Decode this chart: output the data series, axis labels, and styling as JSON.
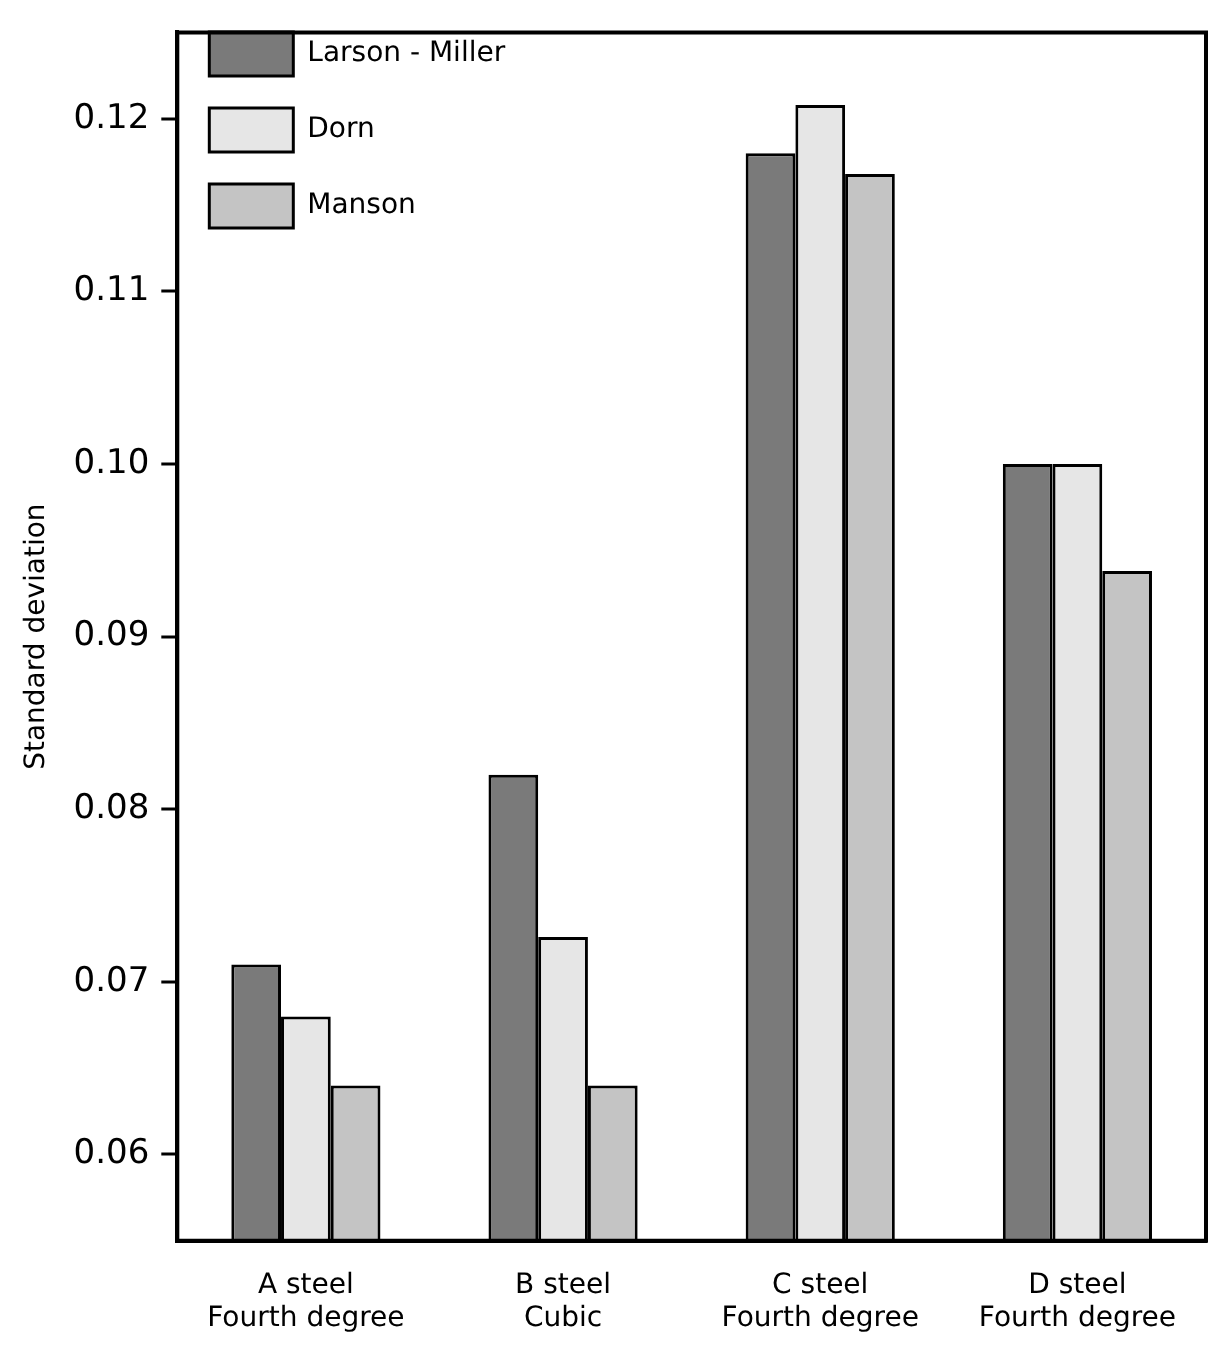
{
  "chart_data": {
    "type": "bar",
    "ylabel": "Standard deviation",
    "categories": [
      "A steel\nFourth degree",
      "B steel\nCubic",
      "C steel\nFourth degree",
      "D steel\nFourth degree"
    ],
    "series": [
      {
        "name": "Larson - Miller",
        "color": "#7a7a7a",
        "values": [
          0.071,
          0.082,
          0.118,
          0.1
        ]
      },
      {
        "name": "Dorn",
        "color": "#e6e6e6",
        "values": [
          0.068,
          0.0726,
          0.1208,
          0.1
        ]
      },
      {
        "name": "Manson",
        "color": "#c4c4c4",
        "values": [
          0.064,
          0.064,
          0.1168,
          0.0938
        ]
      }
    ],
    "ylim": [
      0.055,
      0.125
    ],
    "yticks": [
      0.06,
      0.07,
      0.08,
      0.09,
      {
        "value": 0.1,
        "label": "0.10"
      },
      0.11,
      0.12
    ],
    "grid": false,
    "legend": "top left"
  }
}
